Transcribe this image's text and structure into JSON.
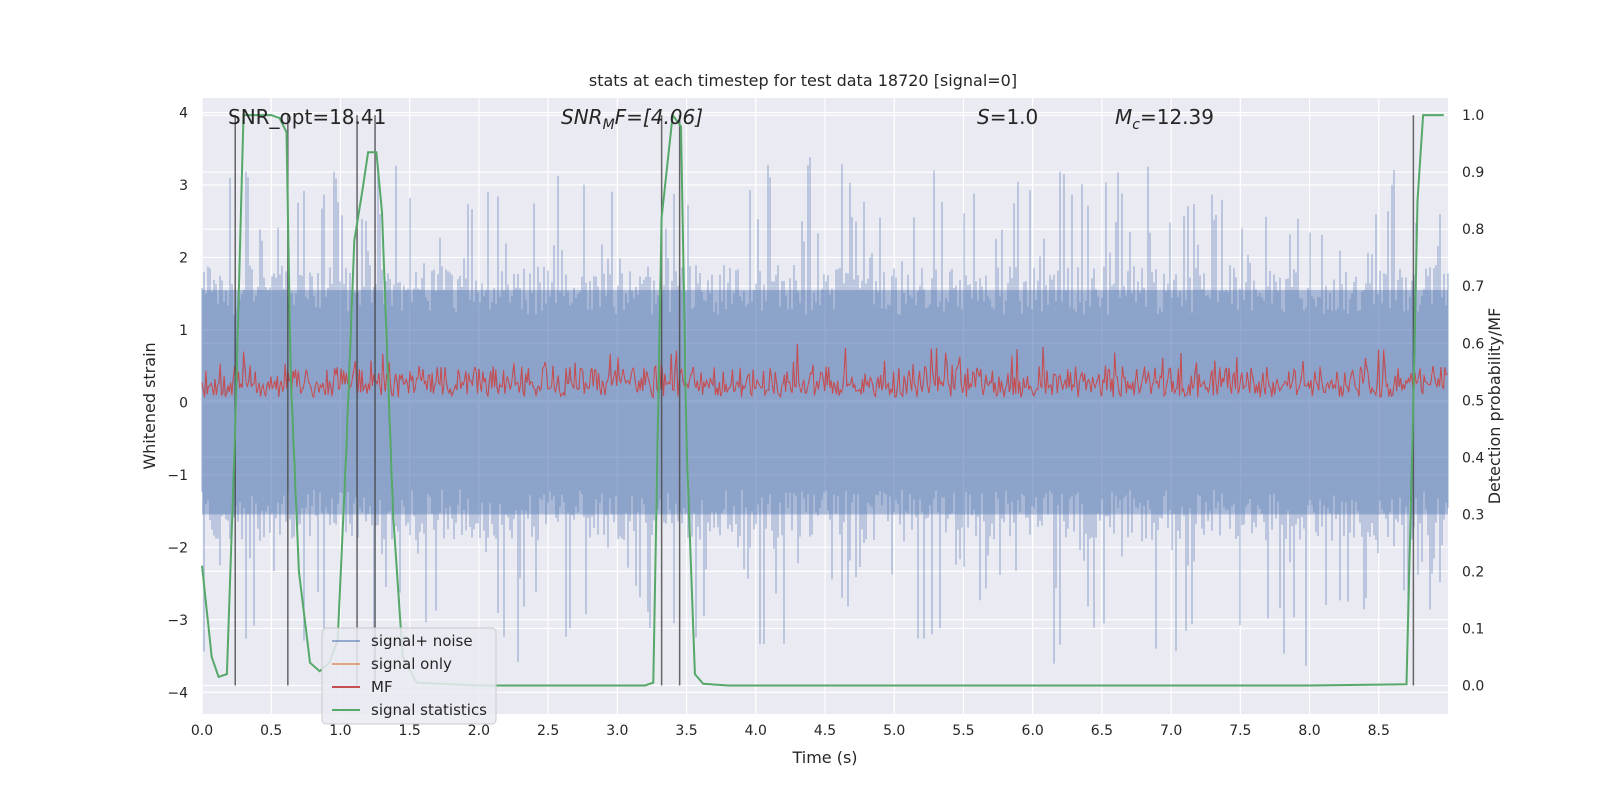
{
  "chart_data": {
    "type": "line",
    "title": "stats at each timestep for test data 18720 [signal=0]",
    "xlabel": "Time (s)",
    "ylabel": "Whitened strain",
    "y2label": "Detection probability/MF",
    "xlim": [
      0.0,
      9.0
    ],
    "ylim": [
      -4.3,
      4.2
    ],
    "y2lim": [
      -0.05,
      1.03
    ],
    "xticks": [
      0.0,
      0.5,
      1.0,
      1.5,
      2.0,
      2.5,
      3.0,
      3.5,
      4.0,
      4.5,
      5.0,
      5.5,
      6.0,
      6.5,
      7.0,
      7.5,
      8.0,
      8.5
    ],
    "xtick_labels": [
      "0.0",
      "0.5",
      "1.0",
      "1.5",
      "2.0",
      "2.5",
      "3.0",
      "3.5",
      "4.0",
      "4.5",
      "5.0",
      "5.5",
      "6.0",
      "6.5",
      "7.0",
      "7.5",
      "8.0",
      "8.5"
    ],
    "yticks": [
      4,
      3,
      2,
      1,
      0,
      -1,
      -2,
      -3,
      -4
    ],
    "ytick_labels": [
      "4",
      "3",
      "2",
      "1",
      "0",
      "−1",
      "−2",
      "−3",
      "−4"
    ],
    "y2ticks": [
      1.0,
      0.9,
      0.8,
      0.7,
      0.6,
      0.5,
      0.4,
      0.3,
      0.2,
      0.1,
      0.0
    ],
    "y2tick_labels": [
      "1.0",
      "0.9",
      "0.8",
      "0.7",
      "0.6",
      "0.5",
      "0.4",
      "0.3",
      "0.2",
      "0.1",
      "0.0"
    ],
    "annotations": {
      "snr_opt": "SNR_opt=18.41",
      "snr_mf_sym": "SNR",
      "snr_mf_sub": "M",
      "snr_mf_rest": "F=[4.06]",
      "s_sym": "S",
      "s_rest": "=1.0",
      "mc_sym": "M",
      "mc_sub": "c",
      "mc_rest": "=12.39"
    },
    "series": [
      {
        "name": "signal+ noise",
        "color": "#4c72b0",
        "style": "noise band, amplitude ±1.7 with spikes up to ±3.8"
      },
      {
        "name": "signal only",
        "color": "#dd8452",
        "style": "zero"
      },
      {
        "name": "MF",
        "color": "#c44e52",
        "style": "band between 0.5 and 0.6 (right axis)"
      },
      {
        "name": "signal statistics",
        "color": "#55a868",
        "x": [
          0.0,
          0.07,
          0.12,
          0.18,
          0.24,
          0.3,
          0.36,
          0.5,
          0.56,
          0.61,
          0.64,
          0.7,
          0.78,
          0.85,
          0.92,
          0.98,
          1.04,
          1.1,
          1.16,
          1.2,
          1.26,
          1.3,
          1.38,
          1.45,
          1.55,
          2.0,
          3.0,
          3.2,
          3.26,
          3.32,
          3.4,
          3.46,
          3.5,
          3.56,
          3.62,
          3.8,
          5.0,
          6.0,
          8.0,
          8.7,
          8.75,
          8.78,
          8.82,
          8.9,
          8.97
        ],
        "values": [
          0.21,
          0.05,
          0.015,
          0.02,
          0.45,
          1.0,
          1.0,
          1.0,
          0.995,
          0.97,
          0.55,
          0.2,
          0.04,
          0.025,
          0.04,
          0.08,
          0.4,
          0.78,
          0.87,
          0.935,
          0.935,
          0.83,
          0.3,
          0.05,
          0.005,
          0.0,
          0.0,
          0.0,
          0.005,
          0.82,
          1.0,
          0.98,
          0.42,
          0.02,
          0.003,
          0.0,
          0.0,
          0.0,
          0.0,
          0.002,
          0.5,
          0.85,
          1.0,
          1.0,
          1.0
        ]
      }
    ],
    "vlines": [
      0.24,
      0.62,
      1.12,
      1.25,
      3.32,
      3.45,
      8.75
    ],
    "legend_position": "lower-left"
  }
}
